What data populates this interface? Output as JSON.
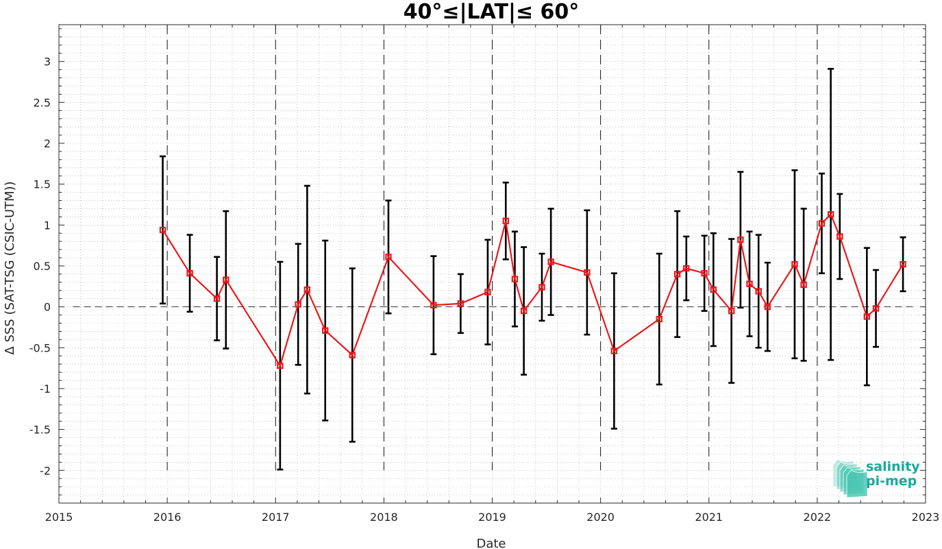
{
  "chart_data": {
    "type": "line",
    "title": "40°≤|LAT|≤ 60°",
    "xlabel": "Date",
    "ylabel": "Δ SSS (SAT-TSG (CSIC-UTM))",
    "xlim": [
      2015,
      2023
    ],
    "ylim": [
      -2.4,
      3.45
    ],
    "x_ticks": [
      2015,
      2016,
      2017,
      2018,
      2019,
      2020,
      2021,
      2022,
      2023
    ],
    "x_tick_labels": [
      "2015",
      "2016",
      "2017",
      "2018",
      "2019",
      "2020",
      "2021",
      "2022",
      "2023"
    ],
    "y_ticks": [
      3,
      2.5,
      2,
      1.5,
      1,
      0.5,
      0,
      -0.5,
      -1,
      -1.5,
      -2
    ],
    "y_tick_labels": [
      "3",
      "2.5",
      "2",
      "1.5",
      "1",
      "0.5",
      "0",
      "-0.5",
      "-1",
      "-1.5",
      "-2"
    ],
    "grid": "minor dotted",
    "zero_line": true,
    "year_boundaries": [
      "2016",
      "2017",
      "2018",
      "2019",
      "2020",
      "2021",
      "2022"
    ],
    "series_color": "#e8191c",
    "errorbar_color": "#000000",
    "series": [
      {
        "x": [
          "2015-12",
          "2016-03",
          "2016-06",
          "2016-07",
          "2017-01",
          "2017-03",
          "2017-04",
          "2017-06",
          "2017-09",
          "2018-01",
          "2018-06",
          "2018-09",
          "2018-12",
          "2019-02",
          "2019-03",
          "2019-04",
          "2019-06",
          "2019-07",
          "2019-11",
          "2020-02",
          "2020-07",
          "2020-09",
          "2020-10",
          "2020-12",
          "2021-01",
          "2021-03",
          "2021-04",
          "2021-05",
          "2021-06",
          "2021-07",
          "2021-10",
          "2021-11",
          "2022-01",
          "2022-02",
          "2022-03",
          "2022-06",
          "2022-07",
          "2022-10"
        ],
        "values": [
          0.94,
          0.41,
          0.1,
          0.33,
          -0.72,
          0.03,
          0.21,
          -0.29,
          -0.59,
          0.61,
          0.02,
          0.04,
          0.18,
          1.05,
          0.34,
          -0.05,
          0.24,
          0.55,
          0.42,
          -0.54,
          -0.15,
          0.4,
          0.47,
          0.41,
          0.21,
          -0.05,
          0.82,
          0.28,
          0.19,
          0.0,
          0.52,
          0.27,
          1.02,
          1.13,
          0.86,
          -0.12,
          -0.02,
          0.52
        ],
        "error": [
          0.9,
          0.47,
          0.51,
          0.84,
          1.27,
          0.74,
          1.27,
          1.1,
          1.06,
          0.69,
          0.6,
          0.36,
          0.64,
          0.47,
          0.58,
          0.78,
          0.41,
          0.65,
          0.76,
          0.95,
          0.8,
          0.77,
          0.39,
          0.46,
          0.69,
          0.88,
          0.83,
          0.64,
          0.69,
          0.54,
          1.15,
          0.93,
          0.61,
          1.78,
          0.52,
          0.84,
          0.47,
          0.33
        ]
      }
    ]
  },
  "logo": {
    "line1": "salinity",
    "line2": "pi-mep",
    "color_text": "#1aa99b",
    "color_waves": "#4cc7b3"
  }
}
